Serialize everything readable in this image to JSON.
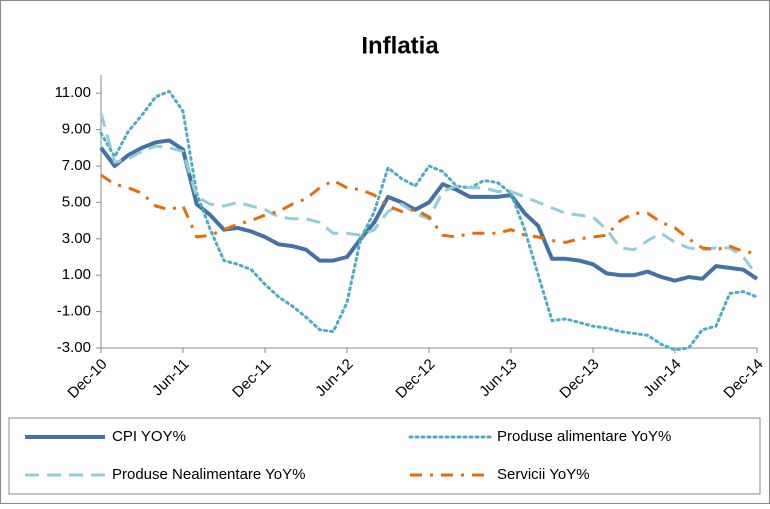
{
  "chart_data": {
    "type": "line",
    "title": "Inflatia",
    "categories": [
      "Dec-10",
      null,
      null,
      null,
      null,
      null,
      "Jun-11",
      null,
      null,
      null,
      null,
      null,
      "Dec-11",
      null,
      null,
      null,
      null,
      null,
      "Jun-12",
      null,
      null,
      null,
      null,
      null,
      "Dec-12",
      null,
      null,
      null,
      null,
      null,
      "Jun-13",
      null,
      null,
      null,
      null,
      null,
      "Dec-13",
      null,
      null,
      null,
      null,
      null,
      "Jun-14",
      null,
      null,
      null,
      null,
      null,
      "Dec-14"
    ],
    "series": [
      {
        "name": "CPI YOY%",
        "color": "#4472a8",
        "style": "solid",
        "values": [
          8.0,
          7.0,
          7.6,
          8.0,
          8.3,
          8.4,
          7.9,
          4.9,
          4.3,
          3.5,
          3.6,
          3.4,
          3.1,
          2.7,
          2.6,
          2.4,
          1.8,
          1.8,
          2.0,
          3.0,
          3.9,
          5.3,
          5.0,
          4.6,
          5.0,
          6.0,
          5.7,
          5.3,
          5.3,
          5.3,
          5.4,
          4.4,
          3.7,
          1.9,
          1.9,
          1.8,
          1.6,
          1.1,
          1.0,
          1.0,
          1.2,
          0.9,
          0.7,
          0.9,
          0.8,
          1.5,
          1.4,
          1.3,
          0.8
        ]
      },
      {
        "name": "Produse alimentare YoY%",
        "color": "#4bacc6",
        "style": "dotted",
        "values": [
          8.8,
          7.5,
          8.9,
          9.8,
          10.8,
          11.1,
          10.0,
          5.5,
          3.5,
          1.8,
          1.6,
          1.3,
          0.5,
          -0.2,
          -0.7,
          -1.3,
          -2.0,
          -2.1,
          -0.5,
          3.0,
          4.5,
          6.9,
          6.3,
          5.9,
          7.0,
          6.7,
          5.9,
          5.8,
          6.2,
          6.1,
          5.5,
          3.5,
          1.0,
          -1.5,
          -1.4,
          -1.6,
          -1.8,
          -1.9,
          -2.1,
          -2.2,
          -2.3,
          -2.8,
          -3.1,
          -3.0,
          -2.0,
          -1.8,
          0.0,
          0.1,
          -0.2
        ]
      },
      {
        "name": "Produse Nealimentare YoY%",
        "color": "#93cddd",
        "style": "dashed",
        "values": [
          9.9,
          7.2,
          7.4,
          7.8,
          8.1,
          8.0,
          7.8,
          5.3,
          4.9,
          4.8,
          5.0,
          4.8,
          4.6,
          4.2,
          4.1,
          4.1,
          3.9,
          3.3,
          3.3,
          3.2,
          3.5,
          4.5,
          4.9,
          4.4,
          4.1,
          5.6,
          5.9,
          5.8,
          5.8,
          5.6,
          5.6,
          5.3,
          5.0,
          4.7,
          4.4,
          4.3,
          4.2,
          3.5,
          2.5,
          2.4,
          2.9,
          3.3,
          2.8,
          2.5,
          2.4,
          2.5,
          2.5,
          2.0,
          1.0
        ]
      },
      {
        "name": "Servicii YoY%",
        "color": "#e46c0a",
        "style": "dashdot",
        "values": [
          6.5,
          6.0,
          5.8,
          5.5,
          4.8,
          4.6,
          4.8,
          3.1,
          3.2,
          3.5,
          3.8,
          4.0,
          4.3,
          4.5,
          4.9,
          5.2,
          5.8,
          6.2,
          5.8,
          5.7,
          5.4,
          4.8,
          4.5,
          4.6,
          4.2,
          3.2,
          3.1,
          3.3,
          3.3,
          3.3,
          3.5,
          3.2,
          3.1,
          2.9,
          2.8,
          3.0,
          3.1,
          3.2,
          4.0,
          4.4,
          4.4,
          3.9,
          3.6,
          3.0,
          2.5,
          2.4,
          2.6,
          2.3,
          2.2
        ]
      }
    ],
    "ylim": [
      -3,
      12
    ],
    "yticks": [
      {
        "value": -3,
        "label": "-3.00"
      },
      {
        "value": -1,
        "label": "-1.00"
      },
      {
        "value": 1,
        "label": "1.00"
      },
      {
        "value": 3,
        "label": "3.00"
      },
      {
        "value": 5,
        "label": "5.00"
      },
      {
        "value": 7,
        "label": "7.00"
      },
      {
        "value": 9,
        "label": "9.00"
      },
      {
        "value": 11,
        "label": "11.00"
      }
    ],
    "grid": false
  }
}
